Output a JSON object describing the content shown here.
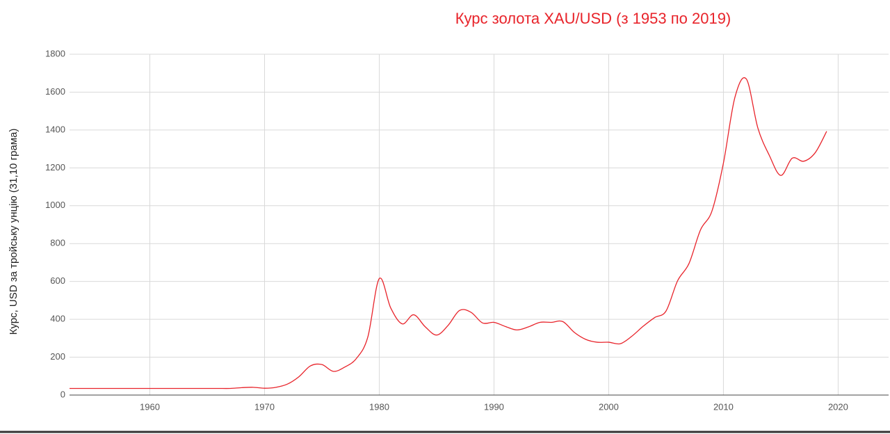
{
  "chart_data": {
    "type": "line",
    "title": "Курс золота XAU/USD (з 1953 по 2019)",
    "y_label": "Курс, USD за тройську унцію (31,10 грама)",
    "x": [
      1953,
      1954,
      1955,
      1956,
      1957,
      1958,
      1959,
      1960,
      1961,
      1962,
      1963,
      1964,
      1965,
      1966,
      1967,
      1968,
      1969,
      1970,
      1971,
      1972,
      1973,
      1974,
      1975,
      1976,
      1977,
      1978,
      1979,
      1980,
      1981,
      1982,
      1983,
      1984,
      1985,
      1986,
      1987,
      1988,
      1989,
      1990,
      1991,
      1992,
      1993,
      1994,
      1995,
      1996,
      1997,
      1998,
      1999,
      2000,
      2001,
      2002,
      2003,
      2004,
      2005,
      2006,
      2007,
      2008,
      2009,
      2010,
      2011,
      2012,
      2013,
      2014,
      2015,
      2016,
      2017,
      2018,
      2019
    ],
    "series": [
      {
        "name": "XAU/USD",
        "color": "#e8232a",
        "values": [
          35,
          35,
          35,
          35,
          35,
          35,
          35,
          35,
          35,
          35,
          35,
          35,
          35,
          35,
          35,
          39,
          41,
          36,
          41,
          58,
          97,
          154,
          161,
          125,
          148,
          193,
          306,
          615,
          460,
          376,
          424,
          361,
          317,
          368,
          447,
          437,
          381,
          384,
          362,
          344,
          360,
          384,
          384,
          388,
          331,
          294,
          279,
          279,
          271,
          310,
          363,
          409,
          444,
          603,
          695,
          872,
          972,
          1225,
          1572,
          1669,
          1411,
          1266,
          1160,
          1251,
          1235,
          1280,
          1393
        ]
      }
    ],
    "xlim": [
      1953,
      2024.4
    ],
    "ylim": [
      0,
      1800
    ],
    "xticks": [
      1960,
      1970,
      1980,
      1990,
      2000,
      2010,
      2020
    ],
    "yticks": [
      0,
      200,
      400,
      600,
      800,
      1000,
      1200,
      1400,
      1600,
      1800
    ],
    "grid": true
  }
}
